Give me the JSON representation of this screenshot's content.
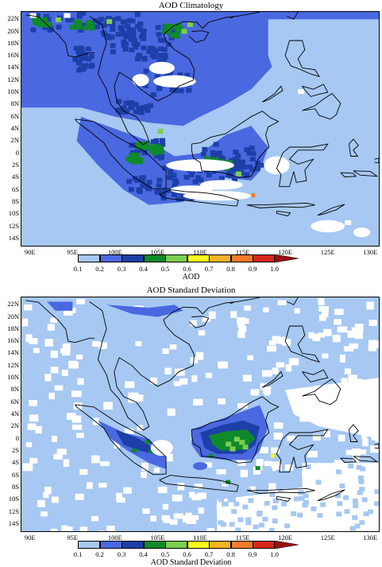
{
  "panels": [
    {
      "title": "AOD Climatology",
      "colorbar_label": "AOD",
      "field": "climatology"
    },
    {
      "title": "AOD Standard Deviation",
      "colorbar_label": "AOD Standard Deviation",
      "field": "stddev"
    }
  ],
  "lat_labels": [
    "22N",
    "20N",
    "18N",
    "16N",
    "14N",
    "12N",
    "10N",
    "8N",
    "6N",
    "4N",
    "2N",
    "0",
    "2S",
    "4S",
    "6S",
    "8S",
    "10S",
    "12S",
    "14S"
  ],
  "lon_labels": [
    "90E",
    "95E",
    "100E",
    "105E",
    "110E",
    "115E",
    "120E",
    "125E",
    "130E"
  ],
  "colorbar_ticks": [
    "0.1",
    "0.2",
    "0.3",
    "0.4",
    "0.5",
    "0.6",
    "0.7",
    "0.8",
    "0.9",
    "1.0"
  ],
  "colors": {
    "c01": "#a6c8f2",
    "c02": "#4a68e0",
    "c03": "#1d3fa8",
    "c04": "#0f8a2a",
    "c05": "#7ccf4e",
    "c06": "#f8f81e",
    "c07": "#f5b324",
    "c08": "#f57a2a",
    "c09": "#d8261c",
    "c10": "#9c1010",
    "coast": "#000000"
  }
}
